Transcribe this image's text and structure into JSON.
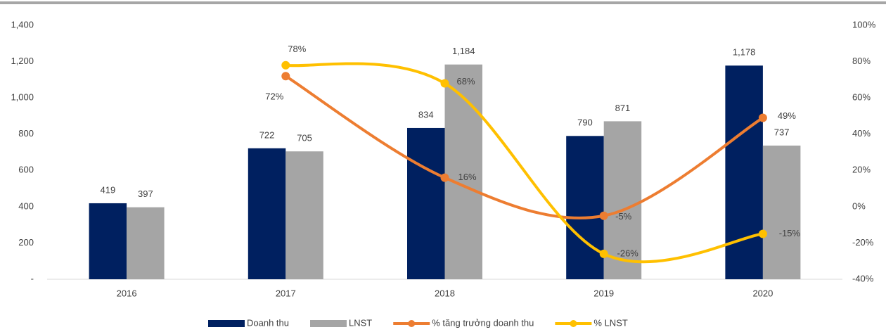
{
  "chart_data": {
    "type": "combo",
    "categories": [
      "2016",
      "2017",
      "2018",
      "2019",
      "2020"
    ],
    "series": [
      {
        "name": "Doanh thu",
        "type": "bar",
        "color": "#002060",
        "values": [
          419,
          722,
          834,
          790,
          1178
        ],
        "value_labels": [
          "419",
          "722",
          "834",
          "790",
          "1,178"
        ]
      },
      {
        "name": "LNST",
        "type": "bar",
        "color": "#a5a5a5",
        "values": [
          397,
          705,
          1184,
          871,
          737
        ],
        "value_labels": [
          "397",
          "705",
          "1,184",
          "871",
          "737"
        ]
      },
      {
        "name": "% tăng trưởng doanh thu",
        "type": "line",
        "axis": "y2",
        "color": "#ed7d31",
        "values": [
          null,
          72,
          16,
          -5,
          49
        ],
        "value_labels": [
          null,
          "72%",
          "16%",
          "-5%",
          "49%"
        ]
      },
      {
        "name": "% LNST",
        "type": "line",
        "axis": "y2",
        "color": "#ffc000",
        "values": [
          null,
          78,
          68,
          -26,
          -15
        ],
        "value_labels": [
          null,
          "78%",
          "68%",
          "-26%",
          "-15%"
        ]
      }
    ],
    "ylim": [
      0,
      1400
    ],
    "yticks": [
      {
        "value": 0,
        "label": "-"
      },
      200,
      400,
      600,
      800,
      {
        "value": 1000,
        "label": "1,000"
      },
      {
        "value": 1200,
        "label": "1,200"
      },
      {
        "value": 1400,
        "label": "1,400"
      }
    ],
    "y2lim": [
      -40,
      100
    ],
    "y2ticks": [
      {
        "value": -40,
        "label": "-40%"
      },
      {
        "value": -20,
        "label": "-20%"
      },
      {
        "value": 0,
        "label": "0%"
      },
      {
        "value": 20,
        "label": "20%"
      },
      {
        "value": 40,
        "label": "40%"
      },
      {
        "value": 60,
        "label": "60%"
      },
      {
        "value": 80,
        "label": "80%"
      },
      {
        "value": 100,
        "label": "100%"
      }
    ],
    "grid": false,
    "legend": "bottom"
  }
}
